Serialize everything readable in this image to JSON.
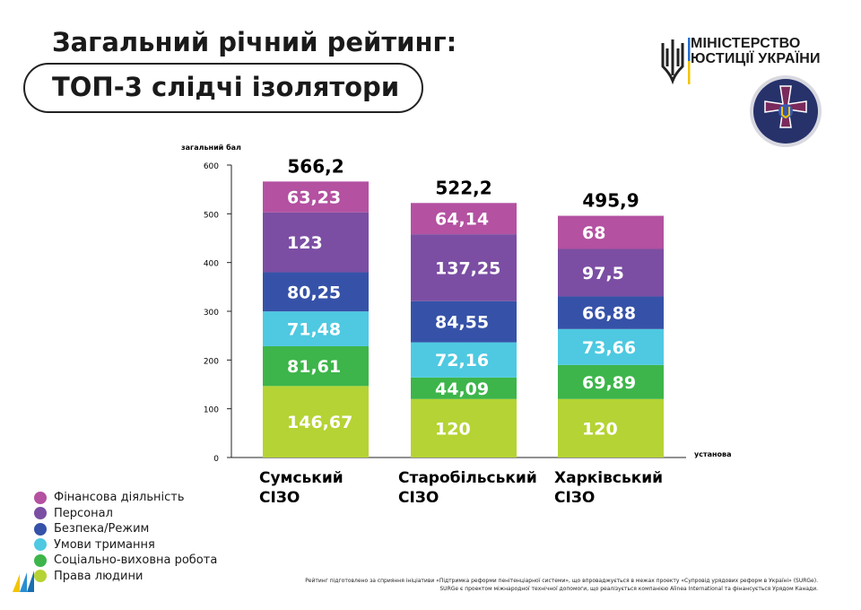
{
  "header": {
    "title": "Загальний річний рейтинг:",
    "subtitle": "ТОП-3 слідчі ізолятори"
  },
  "logo": {
    "line1": "МІНІСТЕРСТВО",
    "line2": "ЮСТИЦІЇ УКРАЇНИ",
    "emblem": "penitentiary-service-emblem"
  },
  "chart_data": {
    "type": "bar",
    "stacked": true,
    "ylabel": "загальний бал",
    "xlabel": "установа",
    "ylim": [
      0,
      600
    ],
    "yticks": [
      0,
      100,
      200,
      300,
      400,
      500,
      600
    ],
    "categories": [
      "Сумський СІЗО",
      "Старобільський СІЗО",
      "Харківський СІЗО"
    ],
    "category_lines": [
      [
        "Сумський",
        "СІЗО"
      ],
      [
        "Старобільський",
        "СІЗО"
      ],
      [
        "Харківський",
        "СІЗО"
      ]
    ],
    "totals": [
      "566,2",
      "522,2",
      "495,9"
    ],
    "series": [
      {
        "name": "Права людини",
        "color": "#b5d334",
        "values": [
          146.67,
          120,
          120
        ],
        "labels": [
          "146,67",
          "120",
          "120"
        ]
      },
      {
        "name": "Соціально-виховна робота",
        "color": "#3db54a",
        "values": [
          81.61,
          44.09,
          69.89
        ],
        "labels": [
          "81,61",
          "44,09",
          "69,89"
        ]
      },
      {
        "name": "Умови тримання",
        "color": "#4ec9e1",
        "values": [
          71.48,
          72.16,
          73.66
        ],
        "labels": [
          "71,48",
          "72,16",
          "73,66"
        ]
      },
      {
        "name": "Безпека/Режим",
        "color": "#3652a8",
        "values": [
          80.25,
          84.55,
          66.88
        ],
        "labels": [
          "80,25",
          "84,55",
          "66,88"
        ]
      },
      {
        "name": "Персонал",
        "color": "#7b4ea3",
        "values": [
          123,
          137.25,
          97.5
        ],
        "labels": [
          "123",
          "137,25",
          "97,5"
        ]
      },
      {
        "name": "Фінансова діяльність",
        "color": "#b451a1",
        "values": [
          63.23,
          64.14,
          68
        ],
        "labels": [
          "63,23",
          "64,14",
          "68"
        ]
      }
    ],
    "legend_position": "bottom-left"
  },
  "footnote": {
    "line1": "Рейтинг підготовлено за сприяння ініціативи «Підтримка реформи пенітенціарної системи», що впроваджується в межах проекту «Супровід урядових реформ в Україні» (SURGe).",
    "line2": "SURGe є проектом міжнародної технічної допомоги, що реалізується компанією Alinea International та фінансується Урядом Канади."
  }
}
